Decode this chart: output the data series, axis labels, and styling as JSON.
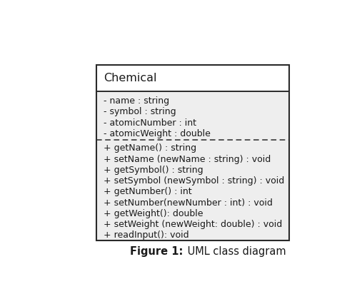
{
  "class_name": "Chemical",
  "attributes": [
    "- name : string",
    "- symbol : string",
    "- atomicNumber : int",
    "- atomicWeight : double"
  ],
  "methods": [
    "+ getName() : string",
    "+ setName (newName : string) : void",
    "+ getSymbol() : string",
    "+ setSymbol (newSymbol : string) : void",
    "+ getNumber() : int",
    "+ setNumber(newNumber : int) : void",
    "+ getWeight(): double",
    "+ setWeight (newWeight: double) : void",
    "+ readInput(): void"
  ],
  "figure_label": "Figure 1:",
  "figure_caption": " UML class diagram",
  "bg_color": "#ffffff",
  "attr_bg_color": "#eeeeee",
  "method_bg_color": "#eeeeee",
  "box_edge_color": "#2a2a2a",
  "text_color": "#1a1a1a",
  "class_name_fontsize": 11.5,
  "body_fontsize": 9.0,
  "fig_caption_fontsize": 10.5
}
